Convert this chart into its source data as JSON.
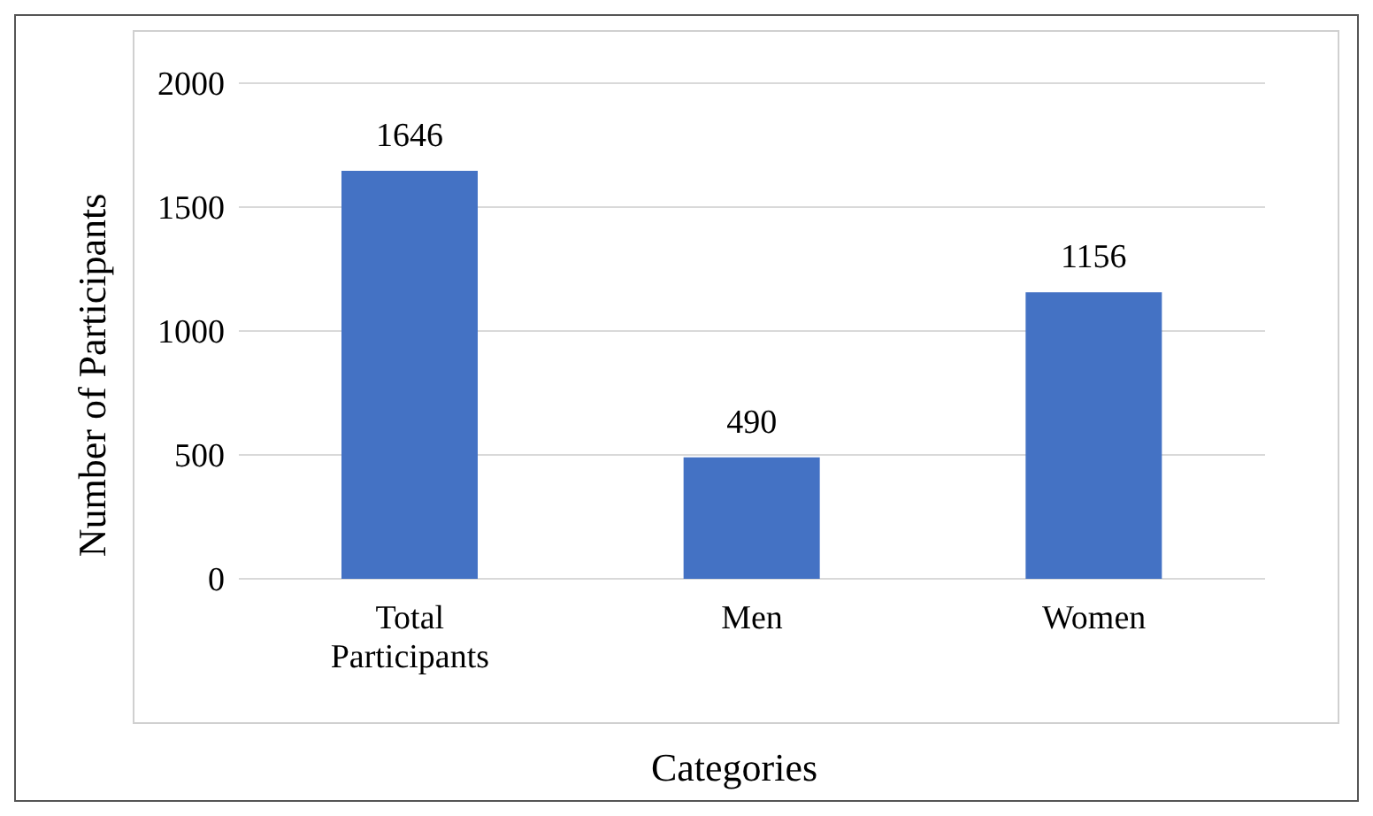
{
  "chart_data": {
    "type": "bar",
    "xlabel": "Categories",
    "ylabel": "Number of Participants",
    "categories": [
      "Total Participants",
      "Men",
      "Women"
    ],
    "values": [
      1646,
      490,
      1156
    ],
    "color": "#4472c4",
    "ylim": [
      0,
      2000
    ],
    "yticks": [
      0,
      500,
      1000,
      1500,
      2000
    ],
    "grid": "y",
    "data_labels": true
  }
}
